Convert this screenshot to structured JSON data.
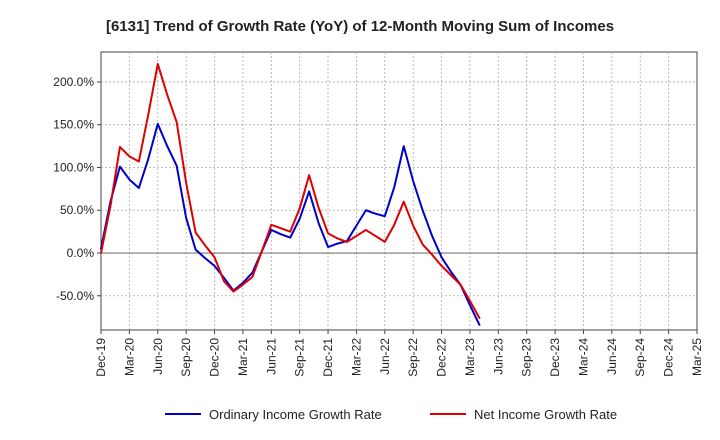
{
  "chart_data": {
    "type": "line",
    "title": "[6131]  Trend of Growth Rate (YoY) of 12-Month Moving Sum of Incomes",
    "xlabel": "",
    "ylabel": "",
    "grid": true,
    "legend_position": "bottom",
    "ylim": [
      -90,
      235
    ],
    "y_ticks": [
      200,
      150,
      100,
      50,
      0,
      -50
    ],
    "y_tick_labels": [
      "200.0%",
      "150.0%",
      "100.0%",
      "50.0%",
      "0.0%",
      "-50.0%"
    ],
    "x_tick_labels": [
      "Dec-19",
      "Mar-20",
      "Jun-20",
      "Sep-20",
      "Dec-20",
      "Mar-21",
      "Jun-21",
      "Sep-21",
      "Dec-21",
      "Mar-22",
      "Jun-22",
      "Sep-22",
      "Dec-22",
      "Mar-23",
      "Jun-23",
      "Sep-23",
      "Dec-23",
      "Mar-24",
      "Jun-24",
      "Sep-24",
      "Dec-24",
      "Mar-25"
    ],
    "series": [
      {
        "name": "Ordinary Income Growth Rate",
        "color": "#0000cc",
        "values": [
          5,
          60,
          101,
          86,
          76,
          110,
          151,
          125,
          102,
          41,
          4,
          -6,
          -15,
          -29,
          -44,
          -35,
          -23,
          2,
          27,
          22,
          18,
          40,
          72,
          35,
          7,
          11,
          14,
          32,
          50,
          46,
          43,
          77,
          125,
          84,
          50,
          20,
          -5,
          -22,
          -37,
          -61,
          -84
        ]
      },
      {
        "name": "Net Income Growth Rate",
        "color": "#dd0000",
        "values": [
          0,
          55,
          124,
          113,
          107,
          162,
          221,
          185,
          153,
          82,
          24,
          9,
          -5,
          -33,
          -45,
          -37,
          -28,
          2,
          33,
          29,
          25,
          52,
          91,
          53,
          23,
          17,
          13,
          20,
          27,
          20,
          13,
          33,
          60,
          32,
          10,
          -2,
          -15,
          -26,
          -37,
          -56,
          -76
        ]
      }
    ]
  }
}
